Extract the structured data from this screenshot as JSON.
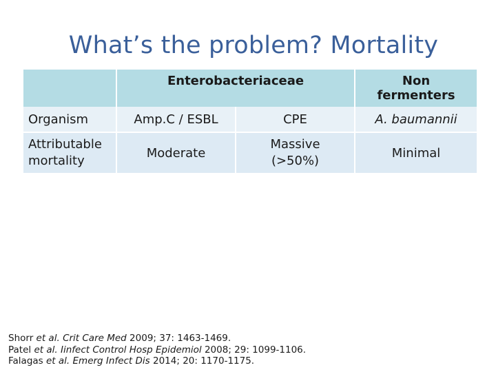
{
  "title": "What’s the problem? Mortality",
  "table": {
    "header": {
      "blank": "",
      "group_enterobacteriaceae": "Enterobacteriaceae",
      "non_fermenters_line1": "Non",
      "non_fermenters_line2": "fermenters"
    },
    "rows": [
      {
        "label": "Organism",
        "ampc_esbl": "Amp.C / ESBL",
        "cpe": "CPE",
        "non_fermenters": "A. baumannii"
      },
      {
        "label_line1": "Attributable",
        "label_line2": "mortality",
        "ampc_esbl": "Moderate",
        "cpe_line1": "Massive",
        "cpe_line2": "(>50%)",
        "non_fermenters": "Minimal"
      }
    ]
  },
  "references": [
    {
      "authors": "Shorr",
      "etal": "et al.",
      "journal": "Crit Care Med",
      "citation": "2009; 37: 1463-1469."
    },
    {
      "authors": "Patel",
      "etal": "et al.",
      "journal": "Iinfect Control Hosp Epidemiol",
      "citation": "2008; 29: 1099-1106."
    },
    {
      "authors": "Falagas",
      "etal": "et al.",
      "journal": "Emerg Infect Dis",
      "citation": "2014; 20: 1170-1175."
    }
  ],
  "colors": {
    "title": "#3a5f9a",
    "header_bg": "#b4dce4",
    "row1_bg": "#e8f1f7",
    "row2_bg": "#ddeaf4"
  }
}
